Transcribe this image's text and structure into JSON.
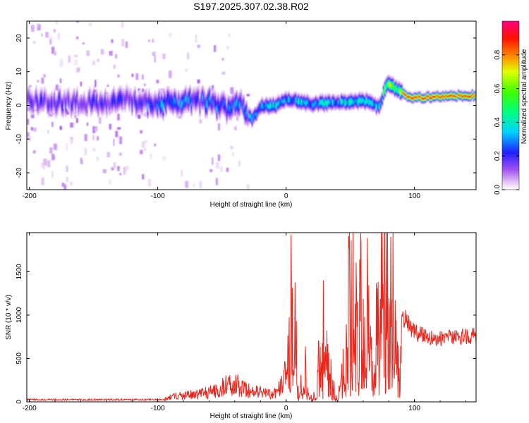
{
  "title": "S197.2025.307.02.38.R02",
  "top_panel": {
    "xlabel": "Height of straight line (km)",
    "ylabel": "Frequency (Hz)",
    "colorbar_label": "Normalized spectral amplitude"
  },
  "bottom_panel": {
    "xlabel": "Height of straight line (km)",
    "ylabel": "SNR (10 * v/v)"
  },
  "colors": {
    "snr_line": "#e8281e",
    "axis": "#000000"
  },
  "chart_data": [
    {
      "type": "heatmap",
      "title": "S197.2025.307.02.38.R02",
      "xlabel": "Height of straight line (km)",
      "ylabel": "Frequency (Hz)",
      "xlim": [
        -202,
        148
      ],
      "ylim": [
        -25,
        25
      ],
      "x_ticks": [
        -200,
        -100,
        0,
        100
      ],
      "y_ticks": [
        -20,
        -10,
        0,
        10,
        20
      ],
      "colorbar": {
        "label": "Normalized spectral amplitude",
        "range": [
          0,
          1
        ],
        "ticks": [
          0.0,
          0.2,
          0.4,
          0.6,
          0.8
        ]
      },
      "ridge_frequency_hz": [
        {
          "x": -200,
          "f": 1.5
        },
        {
          "x": -180,
          "f": 1.0
        },
        {
          "x": -160,
          "f": 1.0
        },
        {
          "x": -140,
          "f": 0.8
        },
        {
          "x": -120,
          "f": 1.5
        },
        {
          "x": -100,
          "f": 0.5
        },
        {
          "x": -80,
          "f": 1.5
        },
        {
          "x": -60,
          "f": 1.0
        },
        {
          "x": -45,
          "f": -1.0
        },
        {
          "x": -35,
          "f": 0.5
        },
        {
          "x": -27,
          "f": -4.0
        },
        {
          "x": -20,
          "f": 0.0
        },
        {
          "x": -10,
          "f": 0.0
        },
        {
          "x": 0,
          "f": 2.0
        },
        {
          "x": 20,
          "f": 0.5
        },
        {
          "x": 40,
          "f": 1.0
        },
        {
          "x": 60,
          "f": 1.5
        },
        {
          "x": 72,
          "f": -0.5
        },
        {
          "x": 78,
          "f": 7.0
        },
        {
          "x": 85,
          "f": 5.0
        },
        {
          "x": 95,
          "f": 2.5
        },
        {
          "x": 110,
          "f": 2.5
        },
        {
          "x": 130,
          "f": 3.0
        },
        {
          "x": 148,
          "f": 3.0
        }
      ]
    },
    {
      "type": "line",
      "xlabel": "Height of straight line (km)",
      "ylabel": "SNR (10 * v/v)",
      "xlim": [
        -202,
        148
      ],
      "ylim": [
        0,
        1950
      ],
      "x_ticks": [
        -200,
        -100,
        0,
        100
      ],
      "y_ticks": [
        0,
        500,
        1000,
        1500
      ],
      "series": [
        {
          "name": "SNR",
          "x": [
            -202,
            -180,
            -150,
            -120,
            -100,
            -90,
            -80,
            -70,
            -60,
            -50,
            -40,
            -35,
            -30,
            -20,
            -10,
            -5,
            0,
            5,
            10,
            15,
            20,
            30,
            40,
            50,
            60,
            70,
            75,
            80,
            83,
            85,
            90,
            100,
            110,
            120,
            130,
            148
          ],
          "values": [
            20,
            20,
            15,
            15,
            10,
            80,
            120,
            130,
            170,
            250,
            350,
            250,
            200,
            180,
            120,
            250,
            600,
            1150,
            50,
            600,
            0,
            700,
            0,
            1300,
            900,
            1100,
            1600,
            1900,
            1950,
            700,
            1000,
            800,
            750,
            720,
            740,
            760
          ]
        }
      ]
    }
  ]
}
